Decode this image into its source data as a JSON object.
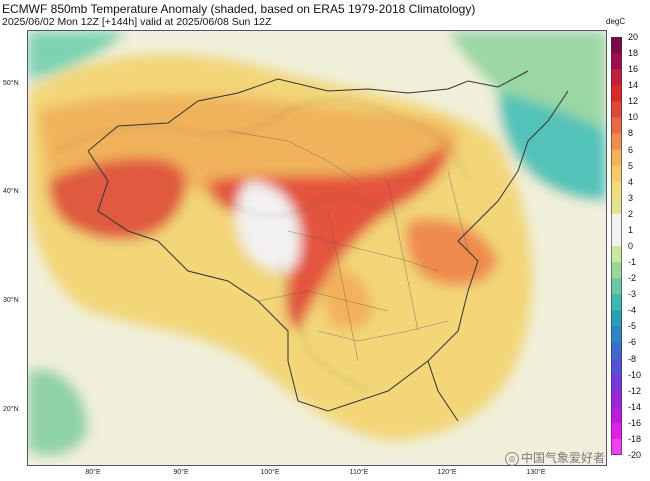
{
  "header": {
    "title": "ECMWF 850mb Temperature Anomaly (shaded, based on ERA5 1979-2018 Climatology)",
    "subtitle": "2025/06/02 Mon 12Z [+144h] valid at 2025/06/08 Sun 12Z"
  },
  "map": {
    "lat_labels": [
      "50°N",
      "40°N",
      "30°N",
      "20°N"
    ],
    "lon_labels": [
      "80°E",
      "90°E",
      "100°E",
      "110°E",
      "120°E",
      "130°E"
    ]
  },
  "colorbar": {
    "unit": "degC",
    "labels": [
      "20",
      "18",
      "16",
      "14",
      "12",
      "10",
      "8",
      "6",
      "5",
      "4",
      "3",
      "2",
      "1",
      "0",
      "-1",
      "-2",
      "-3",
      "-4",
      "-5",
      "-6",
      "-8",
      "-10",
      "-12",
      "-14",
      "-16",
      "-18",
      "-20"
    ],
    "colors": [
      "#7a0a4d",
      "#9c0f4f",
      "#c11f3e",
      "#d92b2b",
      "#e0473a",
      "#e86a45",
      "#ee8d50",
      "#f2b35c",
      "#f4c96a",
      "#f2dd7c",
      "#e4e48e",
      "#f3f1f1",
      "#f3f1f1",
      "#c9e8a0",
      "#9bd79a",
      "#6cc7a4",
      "#3db8b0",
      "#26a0b4",
      "#2b86c2",
      "#3d6acf",
      "#5550d8",
      "#7438dc",
      "#9726dd",
      "#bb1ce0",
      "#df22e8",
      "#f040f0"
    ]
  },
  "watermark": {
    "text": "中国气象爱好者"
  }
}
